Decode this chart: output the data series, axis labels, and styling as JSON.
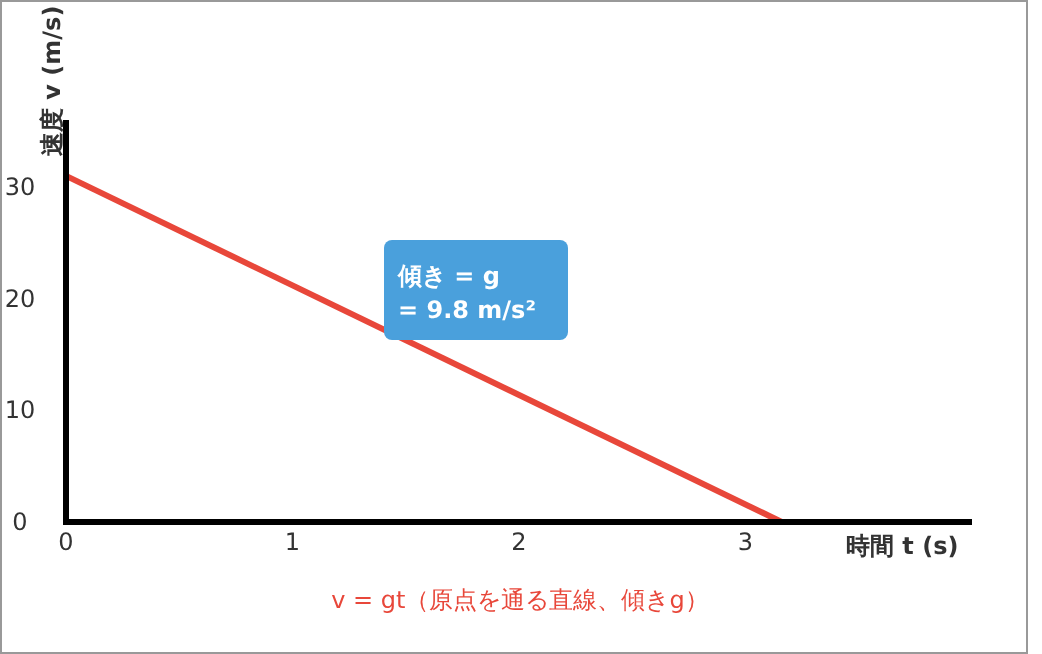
{
  "chart_data": {
    "type": "line",
    "xlabel": "時間 t (s)",
    "ylabel": "速度 v (m/s)",
    "xlim": [
      0,
      4
    ],
    "ylim": [
      0,
      36
    ],
    "xticks": [
      0,
      1,
      2,
      3
    ],
    "yticks": [
      0,
      10,
      20,
      30
    ],
    "series": [
      {
        "color": "#e8473a",
        "x": [
          0,
          3.16
        ],
        "values": [
          31,
          0
        ]
      }
    ],
    "annotations": [
      "傾き = g = 9.8 m/s²",
      "v = gt（原点を通る直線、傾きg）"
    ],
    "grid": false,
    "marker": "none",
    "line_style": "solid"
  }
}
